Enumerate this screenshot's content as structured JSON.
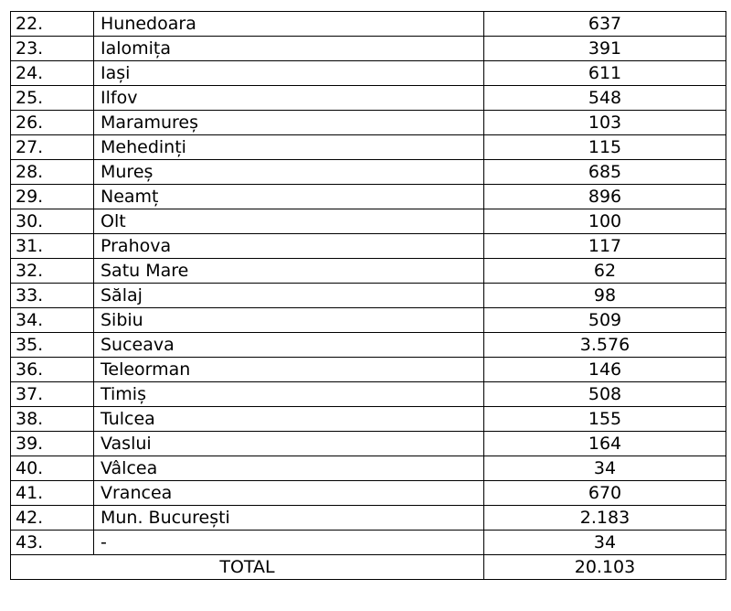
{
  "rows": [
    {
      "nr": "22.",
      "name": "Hunedoara",
      "value": "637"
    },
    {
      "nr": "23.",
      "name": "Ialomița",
      "value": "391"
    },
    {
      "nr": "24.",
      "name": "Iași",
      "value": "611"
    },
    {
      "nr": "25.",
      "name": "Ilfov",
      "value": "548"
    },
    {
      "nr": "26.",
      "name": "Maramureș",
      "value": "103"
    },
    {
      "nr": "27.",
      "name": "Mehedinți",
      "value": "115"
    },
    {
      "nr": "28.",
      "name": "Mureș",
      "value": "685"
    },
    {
      "nr": "29.",
      "name": "Neamț",
      "value": "896"
    },
    {
      "nr": "30.",
      "name": "Olt",
      "value": "100"
    },
    {
      "nr": "31.",
      "name": "Prahova",
      "value": "117"
    },
    {
      "nr": "32.",
      "name": "Satu Mare",
      "value": "62"
    },
    {
      "nr": "33.",
      "name": "Sălaj",
      "value": "98"
    },
    {
      "nr": "34.",
      "name": "Sibiu",
      "value": "509"
    },
    {
      "nr": "35.",
      "name": "Suceava",
      "value": "3.576"
    },
    {
      "nr": "36.",
      "name": "Teleorman",
      "value": "146"
    },
    {
      "nr": "37.",
      "name": "Timiș",
      "value": "508"
    },
    {
      "nr": "38.",
      "name": "Tulcea",
      "value": "155"
    },
    {
      "nr": "39.",
      "name": "Vaslui",
      "value": "164"
    },
    {
      "nr": "40.",
      "name": "Vâlcea",
      "value": "34"
    },
    {
      "nr": "41.",
      "name": "Vrancea",
      "value": "670"
    },
    {
      "nr": "42.",
      "name": "Mun. București",
      "value": "2.183"
    },
    {
      "nr": "43.",
      "name": "-",
      "value": "34"
    }
  ],
  "total": {
    "label": "TOTAL",
    "value": "20.103"
  }
}
